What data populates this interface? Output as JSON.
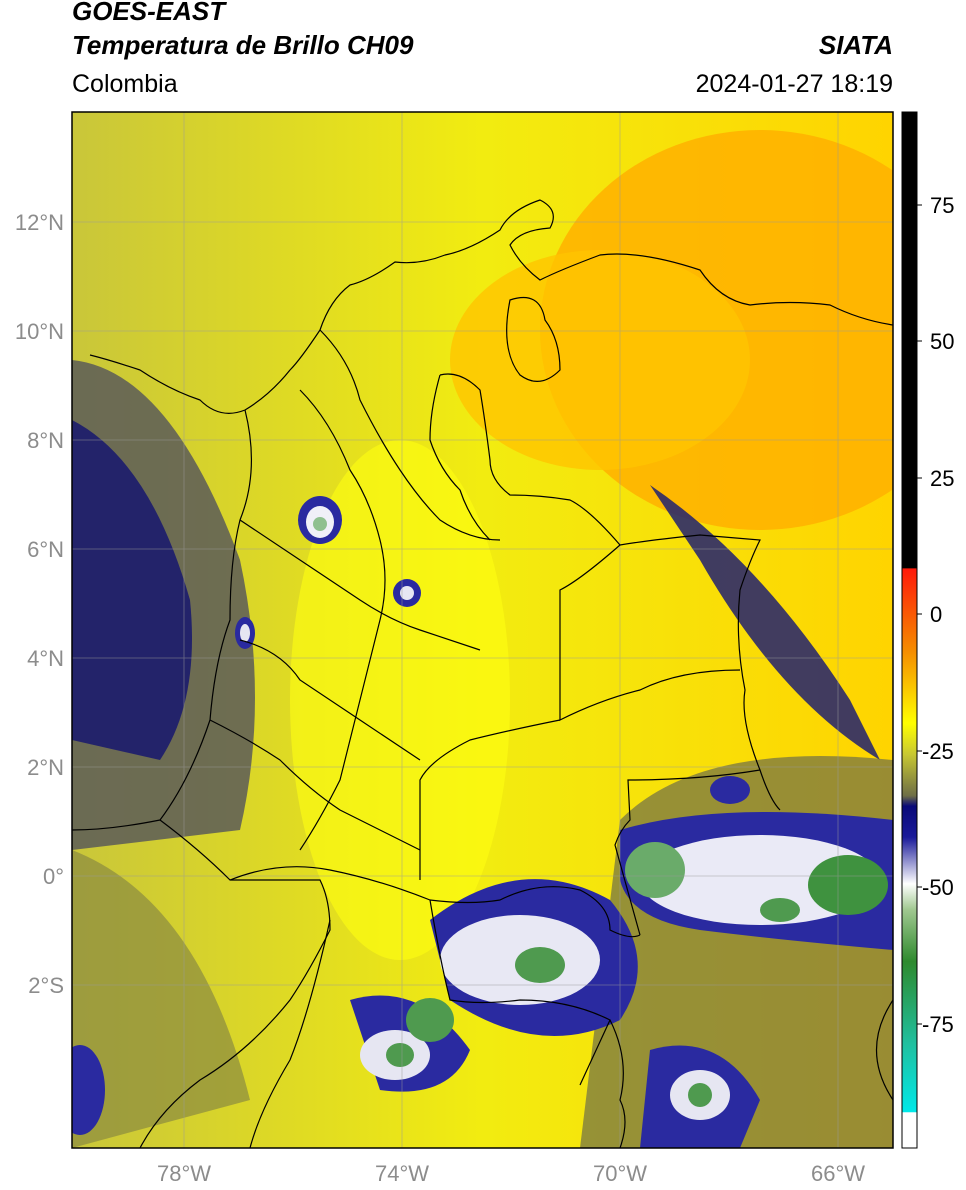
{
  "header": {
    "satellite": "GOES-EAST",
    "product": "Temperatura de Brillo CH09",
    "region": "Colombia",
    "agency": "SIATA",
    "datetime": "2024-01-27 18:19"
  },
  "map": {
    "lat_labels": [
      "12°N",
      "10°N",
      "8°N",
      "6°N",
      "4°N",
      "2°N",
      "0°",
      "2°S"
    ],
    "lon_labels": [
      "78°W",
      "74°W",
      "70°W",
      "66°W"
    ],
    "extent": {
      "lon_min": -80,
      "lon_max": -65,
      "lat_min": -5,
      "lat_max": 14
    },
    "gridlines": true
  },
  "colorbar": {
    "tick_labels": [
      "75",
      "50",
      "25",
      "0",
      "-25",
      "-50",
      "-75"
    ],
    "range": [
      -95,
      90
    ],
    "colors": {
      "black": "#000000",
      "red": "#e8200c",
      "orange": "#f5a000",
      "yellow": "#ffff00",
      "olive": "#8c8c3c",
      "navy": "#10107c",
      "white": "#ffffff",
      "green": "#2e8a2e",
      "teal": "#20c0a0",
      "cyan": "#00e8e8"
    }
  }
}
